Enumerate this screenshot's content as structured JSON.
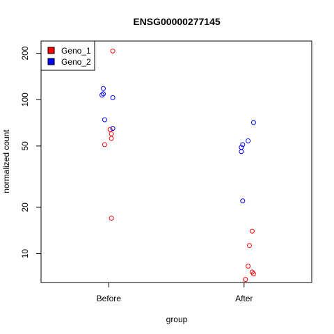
{
  "chart_data": {
    "type": "scatter",
    "title": "ENSG00000277145",
    "xlabel": "group",
    "ylabel": "normalized count",
    "y_scale": "log",
    "ylim": [
      6.5,
      240
    ],
    "y_ticks": [
      10,
      20,
      50,
      100,
      200
    ],
    "categories": [
      "Before",
      "After"
    ],
    "legend": {
      "placement": "top-left"
    },
    "series": [
      {
        "name": "Geno_1",
        "color": "#ff0000",
        "points": [
          {
            "group": "Before",
            "jitter": 0.03,
            "y": 207
          },
          {
            "group": "Before",
            "jitter": 0.01,
            "y": 64
          },
          {
            "group": "Before",
            "jitter": 0.02,
            "y": 60
          },
          {
            "group": "Before",
            "jitter": 0.02,
            "y": 56
          },
          {
            "group": "Before",
            "jitter": -0.03,
            "y": 51
          },
          {
            "group": "Before",
            "jitter": 0.02,
            "y": 17
          },
          {
            "group": "After",
            "jitter": 0.06,
            "y": 14
          },
          {
            "group": "After",
            "jitter": 0.04,
            "y": 11.3
          },
          {
            "group": "After",
            "jitter": 0.03,
            "y": 8.3
          },
          {
            "group": "After",
            "jitter": 0.06,
            "y": 7.6
          },
          {
            "group": "After",
            "jitter": 0.07,
            "y": 7.4
          },
          {
            "group": "After",
            "jitter": 0.01,
            "y": 6.8
          }
        ]
      },
      {
        "name": "Geno_2",
        "color": "#0000ff",
        "points": [
          {
            "group": "Before",
            "jitter": -0.04,
            "y": 118
          },
          {
            "group": "Before",
            "jitter": -0.04,
            "y": 109
          },
          {
            "group": "Before",
            "jitter": -0.05,
            "y": 107
          },
          {
            "group": "Before",
            "jitter": 0.03,
            "y": 103
          },
          {
            "group": "Before",
            "jitter": -0.03,
            "y": 74
          },
          {
            "group": "Before",
            "jitter": 0.03,
            "y": 65
          },
          {
            "group": "After",
            "jitter": 0.07,
            "y": 71
          },
          {
            "group": "After",
            "jitter": 0.03,
            "y": 54
          },
          {
            "group": "After",
            "jitter": -0.01,
            "y": 51
          },
          {
            "group": "After",
            "jitter": -0.02,
            "y": 49
          },
          {
            "group": "After",
            "jitter": -0.02,
            "y": 46
          },
          {
            "group": "After",
            "jitter": -0.01,
            "y": 22
          }
        ]
      }
    ]
  }
}
